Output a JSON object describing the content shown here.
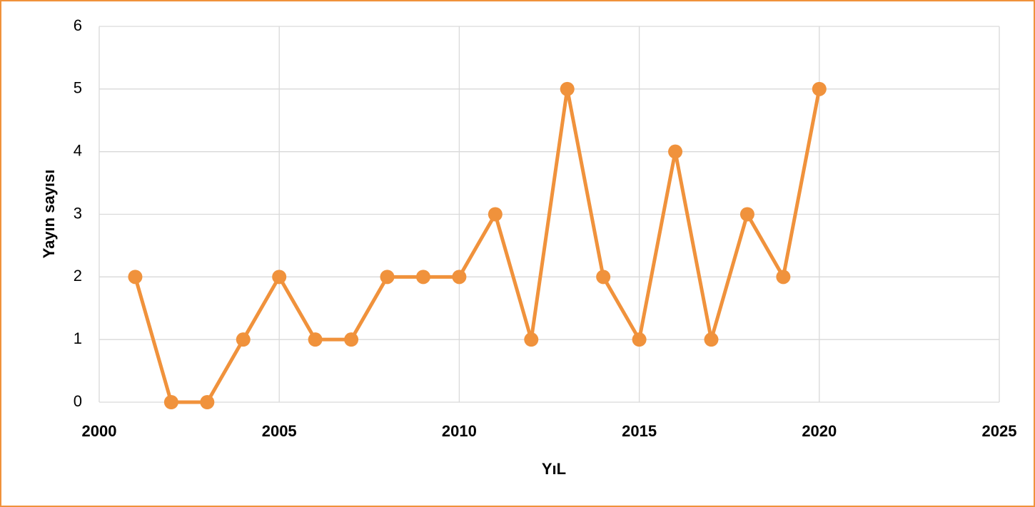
{
  "chart_data": {
    "type": "line",
    "xlabel": "YıL",
    "ylabel": "Yayın sayısı",
    "x": [
      2001,
      2002,
      2003,
      2004,
      2005,
      2006,
      2007,
      2008,
      2009,
      2010,
      2011,
      2012,
      2013,
      2014,
      2015,
      2016,
      2017,
      2018,
      2019,
      2020
    ],
    "series": [
      {
        "name": "Yayın sayısı",
        "color": "#f0923c",
        "values": [
          2,
          0,
          0,
          1,
          2,
          1,
          1,
          2,
          2,
          2,
          3,
          1,
          5,
          2,
          1,
          4,
          1,
          3,
          2,
          5
        ]
      }
    ],
    "xlim": [
      2000,
      2025
    ],
    "xticks": [
      2000,
      2005,
      2010,
      2015,
      2020,
      2025
    ],
    "ylim": [
      0,
      6
    ],
    "yticks": [
      0,
      1,
      2,
      3,
      4,
      5,
      6
    ],
    "grid": true,
    "border_color": "#f0923c"
  }
}
